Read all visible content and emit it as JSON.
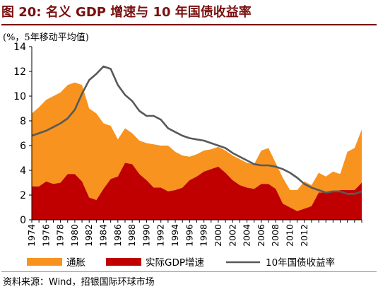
{
  "figure": {
    "title": "图 20: 名义 GDP 增速与 10 年国债收益率",
    "unit_note": "(%，5年移动平均值)",
    "source": "资料来源：Wind，招银国际环球市场"
  },
  "chart_data": {
    "type": "area",
    "title": "",
    "xlabel": "",
    "ylabel": "",
    "ylim": [
      0,
      14
    ],
    "yticks": [
      0,
      2,
      4,
      6,
      8,
      10,
      12,
      14
    ],
    "xlim": [
      1974,
      2020
    ],
    "xticks": [
      1974,
      1976,
      1978,
      1980,
      1982,
      1984,
      1986,
      1988,
      1990,
      1992,
      1994,
      1996,
      1998,
      2000,
      2002,
      2004,
      2006,
      2008,
      2010,
      2012
    ],
    "grid": false,
    "legend_position": "bottom",
    "x": [
      1974,
      1975,
      1976,
      1977,
      1978,
      1979,
      1980,
      1981,
      1982,
      1983,
      1984,
      1985,
      1986,
      1987,
      1988,
      1989,
      1990,
      1991,
      1992,
      1993,
      1994,
      1995,
      1996,
      1997,
      1998,
      1999,
      2000,
      2001,
      2002,
      2003,
      2004,
      2005,
      2006,
      2007,
      2008,
      2009,
      2010,
      2011,
      2012,
      2013,
      2014,
      2015,
      2016,
      2017,
      2018,
      2019,
      2020
    ],
    "series": [
      {
        "name": "通胀",
        "kind": "stacked-area",
        "color": "#f7931e",
        "values": [
          5.9,
          6.4,
          6.6,
          7.1,
          7.3,
          7.2,
          7.4,
          7.8,
          7.2,
          7.0,
          5.3,
          4.3,
          3.0,
          2.8,
          2.5,
          2.7,
          3.0,
          3.5,
          3.4,
          3.7,
          3.1,
          2.6,
          1.9,
          1.8,
          1.7,
          1.6,
          1.6,
          1.8,
          2.0,
          2.1,
          2.0,
          2.0,
          2.7,
          2.9,
          2.1,
          2.1,
          1.4,
          1.7,
          2.2,
          1.7,
          1.6,
          1.3,
          1.6,
          1.3,
          3.1,
          3.4,
          4.3
        ]
      },
      {
        "name": "实际GDP增速",
        "kind": "stacked-area",
        "color": "#c00000",
        "values": [
          2.7,
          2.7,
          3.1,
          2.9,
          3.0,
          3.7,
          3.7,
          3.1,
          1.8,
          1.6,
          2.5,
          3.3,
          3.5,
          4.6,
          4.5,
          3.7,
          3.2,
          2.6,
          2.6,
          2.3,
          2.4,
          2.6,
          3.2,
          3.5,
          3.9,
          4.1,
          4.3,
          3.8,
          3.2,
          2.8,
          2.6,
          2.5,
          2.9,
          2.9,
          2.5,
          1.3,
          1.0,
          0.7,
          0.9,
          1.1,
          2.2,
          2.2,
          2.3,
          2.4,
          2.4,
          2.4,
          3.0
        ]
      },
      {
        "name": "10年国债收益率",
        "kind": "line",
        "color": "#595959",
        "values": [
          6.8,
          7.0,
          7.2,
          7.5,
          7.8,
          8.2,
          8.9,
          10.2,
          11.3,
          11.8,
          12.4,
          12.2,
          10.9,
          10.1,
          9.6,
          8.8,
          8.4,
          8.4,
          8.1,
          7.4,
          7.1,
          6.8,
          6.6,
          6.5,
          6.4,
          6.2,
          6.0,
          5.8,
          5.4,
          5.1,
          4.8,
          4.5,
          4.4,
          4.4,
          4.3,
          4.1,
          3.8,
          3.4,
          2.9,
          2.6,
          2.4,
          2.2,
          2.3,
          2.3,
          2.1,
          2.1,
          2.3
        ]
      }
    ]
  }
}
